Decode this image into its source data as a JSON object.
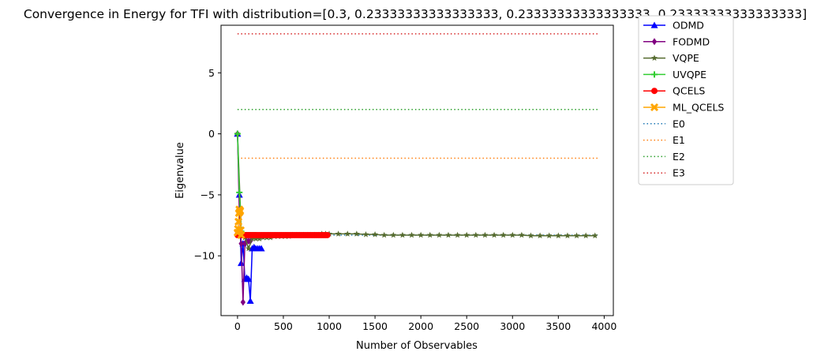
{
  "chart_data": {
    "type": "line",
    "title": "Convergence in Energy for TFI with distribution=[0.3, 0.23333333333333333, 0.23333333333333333, 0.23333333333333333]",
    "xlabel": "Number of Observables",
    "ylabel": "Eigenvalue",
    "xlim": [
      -180,
      4100
    ],
    "ylim": [
      -14.9,
      8.9
    ],
    "x_ticks": [
      0,
      500,
      1000,
      1500,
      2000,
      2500,
      3000,
      3500,
      4000
    ],
    "y_ticks": [
      -10,
      -5,
      0,
      5
    ],
    "y_tick_labels": [
      "−10",
      "−5",
      "0",
      "5"
    ],
    "grid": false,
    "legend_placement": "outside upper right",
    "series": [
      {
        "name": "ODMD",
        "color": "#0000ff",
        "marker": "triangle",
        "linestyle": "solid",
        "x": [
          0,
          20,
          40,
          60,
          80,
          100,
          120,
          140,
          160,
          180,
          200,
          220,
          240,
          260
        ],
        "y": [
          0,
          -5.0,
          -10.6,
          -9.0,
          -11.9,
          -11.8,
          -11.9,
          -13.7,
          -9.4,
          -9.3,
          -9.4,
          -9.4,
          -9.4,
          -9.4
        ]
      },
      {
        "name": "FODMD",
        "color": "#800080",
        "marker": "diamond",
        "linestyle": "solid",
        "x": [
          0,
          20,
          40,
          60,
          80,
          100,
          120,
          140
        ],
        "y": [
          0,
          -6.5,
          -9.0,
          -13.8,
          -9.0,
          -8.8,
          -8.8,
          -8.8
        ]
      },
      {
        "name": "VQPE",
        "color": "#556b2f",
        "marker": "star",
        "linestyle": "solid",
        "x": [
          0,
          40,
          80,
          120,
          160,
          200,
          240,
          280,
          320,
          360,
          400,
          440,
          480,
          520,
          560,
          600,
          640,
          680,
          720,
          760,
          800,
          840,
          880,
          920,
          960,
          1000,
          1100,
          1200,
          1300,
          1400,
          1500,
          1600,
          1700,
          1800,
          1900,
          2000,
          2100,
          2200,
          2300,
          2400,
          2500,
          2600,
          2700,
          2800,
          2900,
          3000,
          3100,
          3200,
          3300,
          3400,
          3500,
          3600,
          3700,
          3800,
          3900
        ],
        "y": [
          0,
          -7.8,
          -8.5,
          -9.4,
          -8.6,
          -8.6,
          -8.6,
          -8.5,
          -8.5,
          -8.5,
          -8.4,
          -8.4,
          -8.4,
          -8.4,
          -8.4,
          -8.3,
          -8.3,
          -8.3,
          -8.3,
          -8.3,
          -8.3,
          -8.3,
          -8.3,
          -8.2,
          -8.2,
          -8.2,
          -8.2,
          -8.2,
          -8.2,
          -8.25,
          -8.25,
          -8.3,
          -8.3,
          -8.3,
          -8.3,
          -8.3,
          -8.3,
          -8.3,
          -8.3,
          -8.3,
          -8.3,
          -8.3,
          -8.3,
          -8.3,
          -8.3,
          -8.3,
          -8.3,
          -8.35,
          -8.35,
          -8.35,
          -8.35,
          -8.35,
          -8.35,
          -8.35,
          -8.35
        ]
      },
      {
        "name": "UVQPE",
        "color": "#32cd32",
        "marker": "plus",
        "linestyle": "solid",
        "x": [
          0,
          20,
          40,
          60,
          80,
          100,
          120,
          140,
          160,
          180,
          200
        ],
        "y": [
          0,
          -4.8,
          -8.0,
          -8.3,
          -8.3,
          -8.3,
          -8.3,
          -8.3,
          -8.3,
          -8.3,
          -8.3
        ]
      },
      {
        "name": "QCELS",
        "color": "#ff0000",
        "marker": "circle",
        "linestyle": "solid",
        "x": [
          0,
          20,
          40,
          60,
          80,
          100,
          120,
          140,
          160,
          180,
          200,
          220,
          240,
          260,
          280,
          300,
          320,
          340,
          360,
          380,
          400,
          420,
          440,
          460,
          480,
          500,
          520,
          540,
          560,
          580,
          600,
          620,
          640,
          660,
          680,
          700,
          720,
          740,
          760,
          780,
          800,
          820,
          840,
          860,
          880,
          900,
          920,
          940,
          960,
          980
        ],
        "y": [
          -8.3,
          -8.3,
          -8.3,
          -8.3,
          -8.3,
          -8.3,
          -8.3,
          -8.3,
          -8.3,
          -8.3,
          -8.3,
          -8.3,
          -8.3,
          -8.3,
          -8.3,
          -8.3,
          -8.3,
          -8.3,
          -8.3,
          -8.3,
          -8.3,
          -8.3,
          -8.3,
          -8.3,
          -8.3,
          -8.3,
          -8.3,
          -8.3,
          -8.3,
          -8.3,
          -8.3,
          -8.3,
          -8.3,
          -8.3,
          -8.3,
          -8.3,
          -8.3,
          -8.3,
          -8.3,
          -8.3,
          -8.3,
          -8.3,
          -8.3,
          -8.3,
          -8.3,
          -8.3,
          -8.3,
          -8.3,
          -8.3,
          -8.3
        ]
      },
      {
        "name": "ML_QCELS",
        "color": "#ffa500",
        "marker": "x-filled",
        "linestyle": "solid",
        "x": [
          0,
          5,
          10,
          15,
          20,
          25,
          30,
          35,
          40
        ],
        "y": [
          -8.1,
          -7.8,
          -7.2,
          -6.5,
          -6.2,
          -6.4,
          -6.3,
          -7.9,
          -8.3
        ]
      },
      {
        "name": "E0",
        "color": "#1f77b4",
        "marker": "none",
        "linestyle": "dotted",
        "x": [
          0,
          3950
        ],
        "y": [
          -8.3,
          -8.3
        ]
      },
      {
        "name": "E1",
        "color": "#ff7f0e",
        "marker": "none",
        "linestyle": "dotted",
        "x": [
          0,
          3950
        ],
        "y": [
          -2.0,
          -2.0
        ]
      },
      {
        "name": "E2",
        "color": "#2ca02c",
        "marker": "none",
        "linestyle": "dotted",
        "x": [
          0,
          3950
        ],
        "y": [
          2.0,
          2.0
        ]
      },
      {
        "name": "E3",
        "color": "#d62728",
        "marker": "none",
        "linestyle": "dotted",
        "x": [
          0,
          3950
        ],
        "y": [
          8.2,
          8.2
        ]
      }
    ]
  }
}
